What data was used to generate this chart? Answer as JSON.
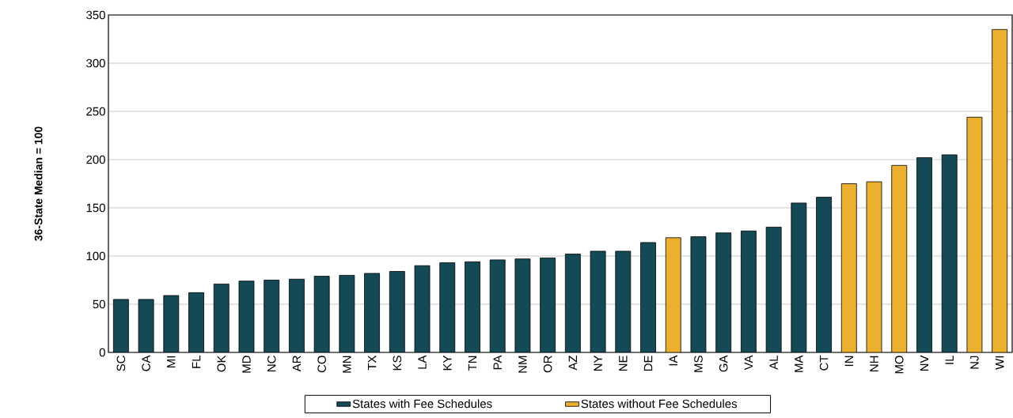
{
  "chart_data": {
    "type": "bar",
    "ylabel": "36-State Median = 100",
    "categories": [
      "SC",
      "CA",
      "MI",
      "FL",
      "OK",
      "MD",
      "NC",
      "AR",
      "CO",
      "MN",
      "TX",
      "KS",
      "LA",
      "KY",
      "TN",
      "PA",
      "NM",
      "OR",
      "AZ",
      "NY",
      "NE",
      "DE",
      "IA",
      "MS",
      "GA",
      "VA",
      "AL",
      "MA",
      "CT",
      "IN",
      "NH",
      "MO",
      "NV",
      "IL",
      "NJ",
      "WI"
    ],
    "series": [
      {
        "name": "States with Fee Schedules",
        "color": "#134a56",
        "values": [
          55,
          55,
          59,
          62,
          71,
          74,
          75,
          76,
          79,
          80,
          82,
          84,
          90,
          93,
          94,
          96,
          97,
          98,
          102,
          105,
          105,
          114,
          null,
          120,
          124,
          126,
          130,
          155,
          161,
          null,
          null,
          null,
          202,
          205,
          null,
          null
        ]
      },
      {
        "name": "States without Fee Schedules",
        "color": "#ebb02d",
        "values": [
          null,
          null,
          null,
          null,
          null,
          null,
          null,
          null,
          null,
          null,
          null,
          null,
          null,
          null,
          null,
          null,
          null,
          null,
          null,
          null,
          null,
          null,
          119,
          null,
          null,
          null,
          null,
          null,
          null,
          175,
          177,
          194,
          null,
          null,
          244,
          335
        ]
      }
    ],
    "ylim": [
      0,
      350
    ],
    "yticks": [
      0,
      50,
      100,
      150,
      200,
      250,
      300,
      350
    ],
    "grid": "y",
    "legend": "bottom"
  }
}
